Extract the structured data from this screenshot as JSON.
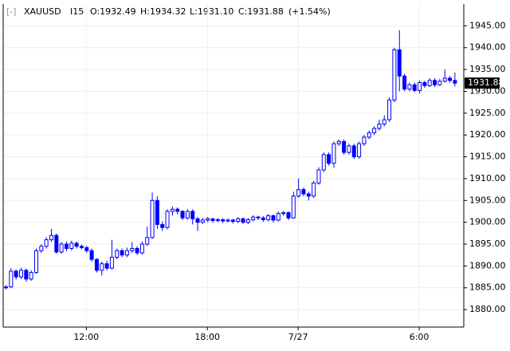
{
  "chart_data": {
    "type": "candlestick",
    "header": {
      "collapse": "[-]",
      "symbol": "XAUUSD",
      "interval": "I15",
      "open_text": "O:1932.49",
      "high_text": "H:1934.32",
      "low_text": "L:1931.10",
      "close_text": "C:1931.88",
      "change_text": "(+1.54%)"
    },
    "color": "#0000ff",
    "categories": [
      null,
      null,
      null,
      null,
      null,
      null,
      null,
      null,
      null,
      null,
      null,
      null,
      null,
      null,
      null,
      null,
      "12:00",
      null,
      null,
      null,
      null,
      null,
      null,
      null,
      null,
      null,
      null,
      null,
      null,
      null,
      null,
      null,
      null,
      null,
      null,
      null,
      null,
      null,
      null,
      null,
      "18:00",
      null,
      null,
      null,
      null,
      null,
      null,
      null,
      null,
      null,
      null,
      null,
      null,
      null,
      null,
      null,
      null,
      null,
      "7/27",
      null,
      null,
      null,
      null,
      null,
      null,
      null,
      null,
      null,
      null,
      null,
      null,
      null,
      null,
      null,
      null,
      null,
      null,
      null,
      null,
      null,
      null,
      null,
      "6:00",
      null,
      null,
      null,
      null,
      null,
      null,
      null
    ],
    "open": [
      1885.0,
      1885.2,
      1888.8,
      1887.5,
      1889.0,
      1887.0,
      1888.5,
      1893.5,
      1894.5,
      1896.0,
      1897.0,
      1893.2,
      1895.0,
      1894.0,
      1895.2,
      1894.5,
      1894.2,
      1893.5,
      1891.5,
      1889.0,
      1890.5,
      1889.5,
      1892.0,
      1893.5,
      1892.5,
      1893.5,
      1894.0,
      1893.0,
      1895.0,
      1896.5,
      1905.0,
      1899.5,
      1898.8,
      1902.5,
      1903.0,
      1902.5,
      1901.0,
      1902.5,
      1900.8,
      1900.0,
      1900.5,
      1900.8,
      1900.4,
      1900.6,
      1900.3,
      1900.5,
      1900.2,
      1900.8,
      1900.0,
      1900.6,
      1901.2,
      1901.0,
      1900.6,
      1901.5,
      1900.5,
      1902.0,
      1902.2,
      1901.0,
      1906.0,
      1907.5,
      1906.5,
      1906.0,
      1909.0,
      1912.0,
      1915.5,
      1913.5,
      1918.0,
      1918.5,
      1916.0,
      1917.5,
      1915.0,
      1918.0,
      1919.5,
      1920.5,
      1921.5,
      1922.5,
      1923.5,
      1928.0,
      1939.5,
      1933.5,
      1930.5,
      1931.5,
      1930.2,
      1932.0,
      1931.3,
      1932.5,
      1931.5,
      1932.3,
      1933.0,
      1932.49
    ],
    "high": [
      1885.6,
      1889.5,
      1889.2,
      1889.6,
      1889.4,
      1889.0,
      1894.0,
      1895.0,
      1896.6,
      1898.5,
      1897.4,
      1895.5,
      1895.6,
      1895.8,
      1895.6,
      1894.9,
      1894.6,
      1894.0,
      1891.8,
      1891.0,
      1891.2,
      1896.0,
      1894.0,
      1894.0,
      1894.2,
      1895.5,
      1894.5,
      1895.6,
      1899.0,
      1906.8,
      1906.0,
      1900.2,
      1903.0,
      1903.6,
      1903.4,
      1902.8,
      1903.0,
      1903.0,
      1901.2,
      1901.0,
      1901.2,
      1901.0,
      1901.0,
      1900.9,
      1900.9,
      1900.8,
      1901.2,
      1901.1,
      1901.0,
      1901.6,
      1901.5,
      1901.4,
      1901.9,
      1901.8,
      1902.5,
      1902.6,
      1902.5,
      1907.0,
      1910.0,
      1908.0,
      1907.0,
      1909.5,
      1912.6,
      1916.0,
      1916.0,
      1918.5,
      1919.0,
      1919.0,
      1918.0,
      1918.0,
      1918.5,
      1920.0,
      1921.0,
      1922.0,
      1923.5,
      1924.5,
      1928.6,
      1940.0,
      1944.0,
      1934.0,
      1932.0,
      1932.0,
      1932.5,
      1932.4,
      1933.0,
      1933.0,
      1932.8,
      1935.0,
      1933.5,
      1934.32
    ],
    "low": [
      1884.6,
      1884.9,
      1886.9,
      1887.0,
      1886.4,
      1886.6,
      1888.2,
      1893.0,
      1894.0,
      1895.5,
      1892.8,
      1892.8,
      1893.4,
      1893.6,
      1894.0,
      1893.8,
      1893.0,
      1891.0,
      1888.5,
      1887.8,
      1889.0,
      1889.2,
      1891.5,
      1892.0,
      1892.0,
      1893.0,
      1892.5,
      1892.6,
      1894.6,
      1896.2,
      1898.5,
      1898.0,
      1898.4,
      1901.5,
      1901.8,
      1900.5,
      1900.6,
      1899.5,
      1898.0,
      1899.6,
      1900.0,
      1899.9,
      1900.0,
      1899.8,
      1899.9,
      1899.7,
      1899.8,
      1899.6,
      1899.6,
      1900.2,
      1900.5,
      1900.1,
      1900.2,
      1900.0,
      1900.2,
      1901.5,
      1900.5,
      1900.8,
      1905.6,
      1906.0,
      1905.0,
      1905.6,
      1908.6,
      1911.5,
      1913.0,
      1912.5,
      1917.5,
      1915.5,
      1915.5,
      1914.5,
      1914.6,
      1917.5,
      1919.0,
      1920.0,
      1921.0,
      1922.0,
      1923.0,
      1927.5,
      1930.0,
      1930.0,
      1930.0,
      1929.8,
      1929.5,
      1930.8,
      1931.0,
      1931.0,
      1931.2,
      1932.0,
      1932.0,
      1931.1
    ],
    "close": [
      1885.2,
      1888.8,
      1887.5,
      1889.0,
      1887.0,
      1888.5,
      1893.5,
      1894.5,
      1896.0,
      1897.0,
      1893.2,
      1895.0,
      1894.0,
      1895.2,
      1894.5,
      1894.2,
      1893.5,
      1891.5,
      1889.0,
      1890.5,
      1889.5,
      1892.0,
      1893.5,
      1892.5,
      1893.5,
      1894.0,
      1893.0,
      1895.0,
      1896.5,
      1905.0,
      1899.5,
      1898.8,
      1902.5,
      1903.0,
      1902.5,
      1901.0,
      1902.5,
      1900.8,
      1900.0,
      1900.5,
      1900.8,
      1900.4,
      1900.6,
      1900.3,
      1900.5,
      1900.2,
      1900.8,
      1900.0,
      1900.6,
      1901.2,
      1901.0,
      1900.6,
      1901.5,
      1900.5,
      1902.0,
      1902.2,
      1901.0,
      1906.0,
      1907.5,
      1906.5,
      1906.0,
      1909.0,
      1912.0,
      1915.5,
      1913.5,
      1918.0,
      1918.5,
      1916.0,
      1917.5,
      1915.0,
      1918.0,
      1919.5,
      1920.5,
      1921.5,
      1922.5,
      1923.5,
      1928.0,
      1939.5,
      1933.5,
      1930.5,
      1931.5,
      1930.2,
      1932.0,
      1931.3,
      1932.5,
      1931.5,
      1932.3,
      1933.0,
      1932.49,
      1931.88
    ],
    "ylim": [
      1876,
      1950
    ],
    "yticks": [
      {
        "value": 1880,
        "label": "1880.00"
      },
      {
        "value": 1885,
        "label": "1885.00"
      },
      {
        "value": 1890,
        "label": "1890.00"
      },
      {
        "value": 1895,
        "label": "1895.00"
      },
      {
        "value": 1900,
        "label": "1900.00"
      },
      {
        "value": 1905,
        "label": "1905.00"
      },
      {
        "value": 1910,
        "label": "1910.00"
      },
      {
        "value": 1915,
        "label": "1915.00"
      },
      {
        "value": 1920,
        "label": "1920.00"
      },
      {
        "value": 1925,
        "label": "1925.00"
      },
      {
        "value": 1930,
        "label": "1930.00"
      },
      {
        "value": 1935,
        "label": "1935.00"
      },
      {
        "value": 1940,
        "label": "1940.00"
      },
      {
        "value": 1945,
        "label": "1945.00"
      }
    ],
    "grid": true
  }
}
